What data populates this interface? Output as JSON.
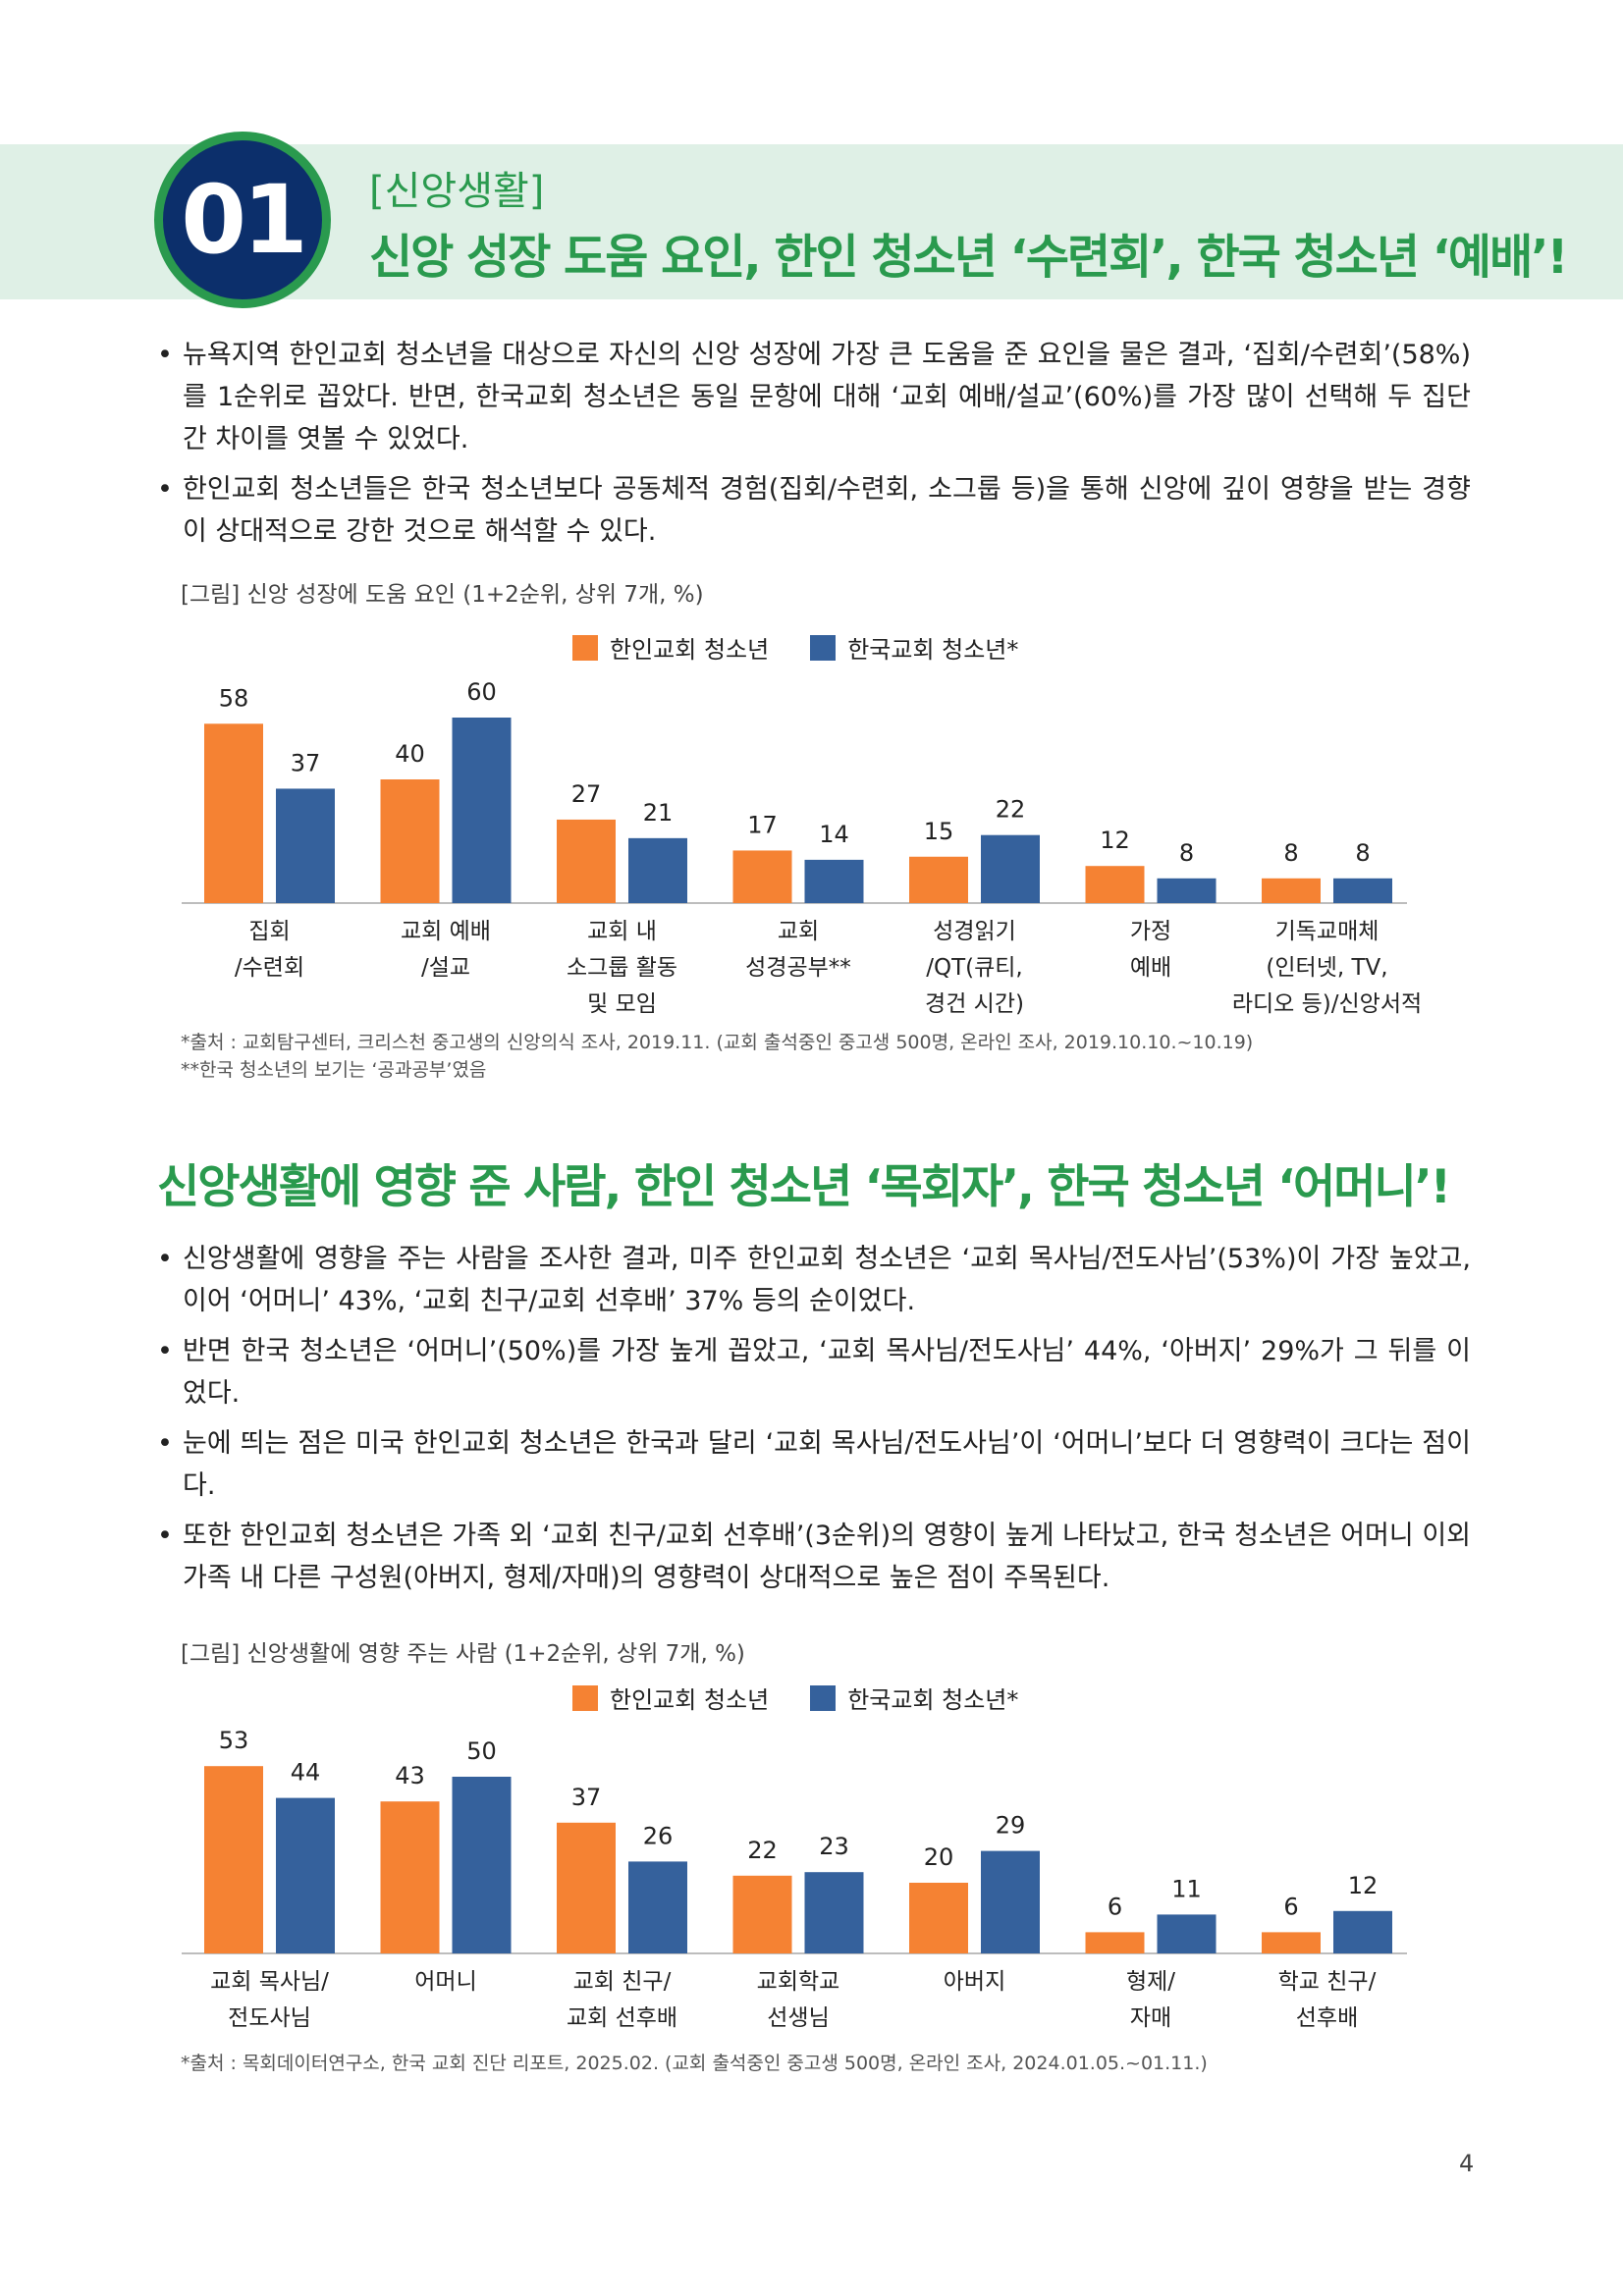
{
  "section": {
    "number": "01",
    "tag": "[신앙생활]",
    "title": "신앙 성장 도움 요인, 한인 청소년 ‘수련회’, 한국 청소년 ‘예배’!"
  },
  "bullets1": [
    "뉴욕지역 한인교회 청소년을 대상으로 자신의 신앙 성장에 가장 큰 도움을 준 요인을 물은 결과, ‘집회/수련회’(58%)를 1순위로 꼽았다. 반면, 한국교회 청소년은 동일 문항에 대해 ‘교회 예배/설교’(60%)를 가장 많이 선택해 두 집단 간 차이를 엿볼 수 있었다.",
    "한인교회 청소년들은 한국 청소년보다 공동체적 경험(집회/수련회, 소그룹 등)을 통해 신앙에 깊이 영향을 받는 경향이 상대적으로 강한 것으로 해석할 수 있다."
  ],
  "chart1": {
    "caption": "[그림] 신앙 성장에 도움 요인 (1+2순위, 상위 7개, %)",
    "legend": [
      "한인교회 청소년",
      "한국교회 청소년*"
    ],
    "notes": [
      "*출처 : 교회탐구센터, 크리스천 중고생의 신앙의식 조사, 2019.11. (교회 출석중인 중고생 500명, 온라인 조사, 2019.10.10.~10.19)",
      "**한국 청소년의 보기는 ‘공과공부’였음"
    ]
  },
  "section2_title": "신앙생활에 영향 준 사람, 한인 청소년 ‘목회자’, 한국 청소년 ‘어머니’!",
  "bullets2": [
    "신앙생활에 영향을 주는 사람을 조사한 결과, 미주 한인교회 청소년은 ‘교회 목사님/전도사님’(53%)이 가장 높았고, 이어 ‘어머니’ 43%, ‘교회 친구/교회 선후배’ 37% 등의 순이었다.",
    "반면 한국 청소년은 ‘어머니’(50%)를 가장 높게 꼽았고, ‘교회 목사님/전도사님’ 44%, ‘아버지’ 29%가 그 뒤를 이었다.",
    "눈에 띄는 점은 미국 한인교회 청소년은 한국과 달리 ‘교회 목사님/전도사님’이 ‘어머니’보다 더 영향력이 크다는 점이다.",
    "또한 한인교회 청소년은 가족 외 ‘교회 친구/교회 선후배’(3순위)의 영향이 높게 나타났고, 한국 청소년은 어머니 이외 가족 내 다른 구성원(아버지, 형제/자매)의 영향력이 상대적으로 높은 점이 주목된다."
  ],
  "chart2": {
    "caption": "[그림] 신앙생활에 영향 주는 사람 (1+2순위, 상위 7개, %)",
    "legend": [
      "한인교회 청소년",
      "한국교회 청소년*"
    ],
    "notes": [
      "*출처 : 목회데이터연구소, 한국 교회 진단 리포트, 2025.02. (교회 출석중인 중고생 500명, 온라인 조사, 2024.01.05.~01.11.)"
    ]
  },
  "page_number": "4",
  "colors": {
    "korean_american": "#f58233",
    "korea": "#35619c",
    "accent": "#2a9a4e",
    "navy": "#0c2f6b"
  },
  "chart_data": [
    {
      "type": "bar",
      "categories": [
        "집회\n/수련회",
        "교회 예배\n/설교",
        "교회 내\n소그룹 활동\n및 모임",
        "교회\n성경공부**",
        "성경읽기\n/QT(큐티,\n경건 시간)",
        "가정\n예배",
        "기독교매체\n(인터넷, TV,\n라디오 등)/신앙서적"
      ],
      "series": [
        {
          "name": "한인교회 청소년",
          "values": [
            58,
            40,
            27,
            17,
            15,
            12,
            8
          ]
        },
        {
          "name": "한국교회 청소년*",
          "values": [
            37,
            60,
            21,
            14,
            22,
            8,
            8
          ]
        }
      ],
      "ylim": [
        0,
        60
      ],
      "legend": "top"
    },
    {
      "type": "bar",
      "categories": [
        "교회 목사님/\n전도사님",
        "어머니",
        "교회 친구/\n교회 선후배",
        "교회학교\n선생님",
        "아버지",
        "형제/\n자매",
        "학교 친구/\n선후배"
      ],
      "series": [
        {
          "name": "한인교회 청소년",
          "values": [
            53,
            43,
            37,
            22,
            20,
            6,
            6
          ]
        },
        {
          "name": "한국교회 청소년*",
          "values": [
            44,
            50,
            26,
            23,
            29,
            11,
            12
          ]
        }
      ],
      "ylim": [
        0,
        53
      ],
      "legend": "top"
    }
  ]
}
